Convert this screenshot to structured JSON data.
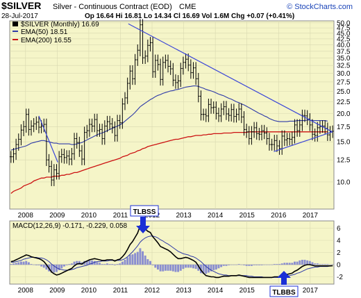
{
  "header": {
    "symbol": "$SILVER",
    "name": "Silver - Continuous Contract (EOD)",
    "exchange": "CME",
    "date": "28-Jul-2017",
    "quote": "Op 16.64  Hi 16.81  Lo 14.34  Cl 16.69  Vol 1.6M  Chg +0.07 (+0.41%)",
    "brand": "© StockCharts.com"
  },
  "legend": {
    "price": "$SILVER (Monthly) 16.69",
    "ema50": "EMA(50) 18.51",
    "ema200": "EMA(200) 16.55",
    "macd": "MACD(12,26,9) -0.171, -0.229, 0.058"
  },
  "annotations": {
    "tlbss": "TLBSS",
    "tlbbs": "TLBBS"
  },
  "colors": {
    "plot_bg": "#f5f5c8",
    "price": "#000000",
    "ema50": "#2e3aa8",
    "ema200": "#cc1111",
    "trendline": "#3a45d8",
    "hist": "#8a8ed0",
    "arrow": "#1b2fd6"
  },
  "chart_data": [
    {
      "type": "bar",
      "title": "$SILVER (Monthly)",
      "xlabel": "",
      "ylabel": "",
      "yscale": "log",
      "ylim": [
        7.6,
        51
      ],
      "x_ticks": [
        "2008",
        "2009",
        "2010",
        "2011",
        "2012",
        "2013",
        "2014",
        "2015",
        "2016",
        "2017"
      ],
      "y_ticks": [
        "50.0",
        "47.5",
        "45.0",
        "42.5",
        "40.0",
        "37.5",
        "35.0",
        "32.5",
        "30.0",
        "27.5",
        "25.0",
        "22.5",
        "20.0",
        "17.5",
        "15.0",
        "12.5",
        "10.0"
      ],
      "x_start": 2007.5,
      "x_end": 2017.75,
      "close": [
        12.9,
        13.3,
        14.6,
        15.4,
        16.9,
        17.5,
        19.8,
        17.0,
        17.6,
        18.0,
        18.3,
        17.4,
        17.6,
        17.9,
        12.5,
        11.7,
        10.2,
        11.3,
        10.9,
        12.9,
        13.2,
        12.8,
        13.0,
        12.6,
        13.3,
        15.5,
        14.9,
        13.7,
        12.6,
        16.5,
        16.8,
        17.9,
        17.6,
        18.8,
        16.8,
        17.0,
        15.5,
        17.6,
        18.4,
        18.0,
        17.4,
        16.0,
        18.6,
        18.2,
        22.0,
        23.4,
        27.1,
        30.7,
        28.4,
        34.4,
        37.9,
        49.0,
        35.1,
        35.7,
        39.8,
        40.9,
        30.5,
        34.2,
        32.8,
        28.2,
        33.5,
        34.2,
        32.2,
        31.4,
        28.0,
        27.3,
        27.8,
        31.5,
        33.5,
        34.6,
        32.6,
        30.2,
        31.7,
        28.4,
        23.8,
        19.8,
        19.8,
        19.5,
        21.9,
        21.2,
        21.3,
        20.0,
        19.5,
        20.9,
        21.4,
        19.9,
        19.6,
        20.8,
        19.4,
        19.8,
        20.9,
        19.3,
        17.0,
        16.6,
        15.5,
        16.6,
        17.3,
        16.3,
        16.2,
        16.8,
        16.4,
        15.5,
        14.6,
        14.6,
        15.2,
        14.4,
        14.0,
        15.9,
        15.3,
        15.5,
        15.4,
        15.7,
        17.8,
        16.8,
        17.8,
        19.6,
        19.5,
        18.9,
        17.8,
        16.2,
        16.0,
        17.3,
        17.5,
        17.6,
        17.2,
        16.1,
        16.6,
        16.7
      ],
      "ema50": [
        13.8,
        13.9,
        14.0,
        14.1,
        14.2,
        14.3,
        14.4,
        14.6,
        14.8,
        14.9,
        15.0,
        15.1,
        15.2,
        15.2,
        15.1,
        15.0,
        14.9,
        14.8,
        14.8,
        14.7,
        14.7,
        14.7,
        14.7,
        14.7,
        14.6,
        14.6,
        14.7,
        14.8,
        14.9,
        15.1,
        15.3,
        15.5,
        15.7,
        15.9,
        16.1,
        16.3,
        16.4,
        16.6,
        16.8,
        17.0,
        17.2,
        17.4,
        17.6,
        17.8,
        18.1,
        18.5,
        18.9,
        19.3,
        19.7,
        20.2,
        20.8,
        21.4,
        21.8,
        22.2,
        22.6,
        23.0,
        23.3,
        23.7,
        24.0,
        24.2,
        24.5,
        24.7,
        24.9,
        25.1,
        25.2,
        25.4,
        25.5,
        25.7,
        25.9,
        26.1,
        26.2,
        26.3,
        26.4,
        26.4,
        26.3,
        26.0,
        25.8,
        25.5,
        25.3,
        25.1,
        24.9,
        24.6,
        24.3,
        24.1,
        23.9,
        23.6,
        23.3,
        23.1,
        22.8,
        22.5,
        22.3,
        22.0,
        21.8,
        21.5,
        21.2,
        20.9,
        20.6,
        20.3,
        20.0,
        19.8,
        19.5,
        19.3,
        19.0,
        18.8,
        18.6,
        18.5,
        18.4,
        18.4,
        18.4,
        18.4,
        18.5,
        18.5,
        18.5,
        18.6,
        18.6,
        18.6,
        18.6,
        18.7,
        18.7,
        18.6,
        18.6,
        18.6,
        18.6,
        18.6,
        18.6,
        18.5
      ],
      "ema200": [
        8.9,
        9.1,
        9.2,
        9.3,
        9.4,
        9.6,
        9.7,
        9.8,
        9.9,
        10.1,
        10.2,
        10.3,
        10.4,
        10.4,
        10.5,
        10.5,
        10.5,
        10.6,
        10.6,
        10.6,
        10.7,
        10.7,
        10.8,
        10.8,
        10.9,
        11.0,
        11.0,
        11.1,
        11.2,
        11.3,
        11.4,
        11.5,
        11.6,
        11.7,
        11.8,
        11.9,
        12.0,
        12.1,
        12.2,
        12.3,
        12.4,
        12.5,
        12.6,
        12.7,
        12.9,
        13.0,
        13.1,
        13.3,
        13.4,
        13.5,
        13.7,
        13.8,
        14.0,
        14.1,
        14.3,
        14.4,
        14.5,
        14.6,
        14.7,
        14.8,
        14.9,
        15.0,
        15.1,
        15.2,
        15.3,
        15.4,
        15.4,
        15.5,
        15.6,
        15.7,
        15.8,
        15.8,
        15.9,
        16.0,
        16.0,
        16.0,
        16.1,
        16.1,
        16.2,
        16.2,
        16.3,
        16.3,
        16.3,
        16.3,
        16.4,
        16.4,
        16.4,
        16.4,
        16.5,
        16.5,
        16.5,
        16.5,
        16.5,
        16.5,
        16.6,
        16.6,
        16.6,
        16.6,
        16.6,
        16.6,
        16.6,
        16.6,
        16.6,
        16.6,
        16.6,
        16.6,
        16.6,
        16.6,
        16.6,
        16.6,
        16.6,
        16.6,
        16.6,
        16.6,
        16.6,
        16.6,
        16.6,
        16.6,
        16.6,
        16.6,
        16.6,
        16.6,
        16.6,
        16.6,
        16.6,
        16.6
      ]
    },
    {
      "type": "line",
      "title": "MACD(12,26,9)",
      "ylim": [
        -3.2,
        7.2
      ],
      "y_ticks": [
        "6",
        "4",
        "2",
        "0",
        "-2"
      ],
      "x_start": 2007.5,
      "x_end": 2017.75,
      "macd": [
        0.5,
        0.6,
        0.8,
        1.0,
        1.2,
        1.4,
        1.6,
        1.5,
        1.3,
        1.2,
        1.1,
        1.0,
        0.8,
        0.5,
        0.0,
        -0.6,
        -1.2,
        -1.5,
        -1.7,
        -1.6,
        -1.4,
        -1.2,
        -1.0,
        -0.8,
        -0.6,
        -0.2,
        0.1,
        0.2,
        0.1,
        0.4,
        0.6,
        0.8,
        0.9,
        1.0,
        0.9,
        0.8,
        0.7,
        0.7,
        0.8,
        0.8,
        0.8,
        0.6,
        0.8,
        0.9,
        1.3,
        1.8,
        2.5,
        3.3,
        3.8,
        4.5,
        5.2,
        6.4,
        6.3,
        5.9,
        5.5,
        5.3,
        4.6,
        4.1,
        3.6,
        3.0,
        2.8,
        2.6,
        2.4,
        2.1,
        1.7,
        1.3,
        1.0,
        1.0,
        1.1,
        1.2,
        1.1,
        0.9,
        0.7,
        0.4,
        -0.2,
        -0.9,
        -1.4,
        -1.8,
        -1.9,
        -2.0,
        -2.0,
        -2.1,
        -2.1,
        -2.0,
        -1.9,
        -1.9,
        -1.9,
        -1.8,
        -1.8,
        -1.8,
        -1.7,
        -1.8,
        -1.9,
        -2.0,
        -2.1,
        -2.1,
        -2.1,
        -2.1,
        -2.1,
        -2.1,
        -2.1,
        -2.1,
        -2.1,
        -2.1,
        -2.0,
        -2.0,
        -2.0,
        -1.8,
        -1.7,
        -1.6,
        -1.5,
        -1.4,
        -1.1,
        -0.9,
        -0.6,
        -0.3,
        -0.1,
        0.0,
        0.0,
        -0.1,
        -0.2,
        -0.2,
        -0.2,
        -0.2,
        -0.2,
        -0.2,
        -0.2,
        -0.17
      ],
      "signal": [
        0.4,
        0.4,
        0.5,
        0.6,
        0.7,
        0.9,
        1.0,
        1.1,
        1.2,
        1.2,
        1.2,
        1.1,
        1.1,
        1.0,
        0.8,
        0.5,
        0.1,
        -0.2,
        -0.5,
        -0.7,
        -0.8,
        -0.9,
        -0.9,
        -0.9,
        -0.8,
        -0.7,
        -0.5,
        -0.4,
        -0.3,
        -0.2,
        -0.1,
        0.1,
        0.2,
        0.4,
        0.5,
        0.5,
        0.6,
        0.6,
        0.6,
        0.7,
        0.7,
        0.7,
        0.7,
        0.7,
        0.8,
        1.0,
        1.3,
        1.7,
        2.1,
        2.6,
        3.1,
        3.7,
        4.1,
        4.4,
        4.6,
        4.7,
        4.7,
        4.6,
        4.4,
        4.1,
        3.9,
        3.6,
        3.4,
        3.1,
        2.8,
        2.5,
        2.2,
        2.0,
        1.8,
        1.7,
        1.6,
        1.4,
        1.3,
        1.1,
        0.8,
        0.5,
        0.1,
        -0.3,
        -0.6,
        -0.9,
        -1.1,
        -1.3,
        -1.5,
        -1.6,
        -1.7,
        -1.7,
        -1.8,
        -1.8,
        -1.8,
        -1.8,
        -1.8,
        -1.8,
        -1.8,
        -1.8,
        -1.9,
        -1.9,
        -2.0,
        -2.0,
        -2.0,
        -2.0,
        -2.1,
        -2.1,
        -2.1,
        -2.1,
        -2.1,
        -2.1,
        -2.1,
        -2.0,
        -2.0,
        -1.9,
        -1.8,
        -1.7,
        -1.6,
        -1.4,
        -1.3,
        -1.1,
        -0.9,
        -0.7,
        -0.6,
        -0.5,
        -0.4,
        -0.4,
        -0.3,
        -0.3,
        -0.3,
        -0.3,
        -0.2,
        -0.229
      ]
    }
  ]
}
